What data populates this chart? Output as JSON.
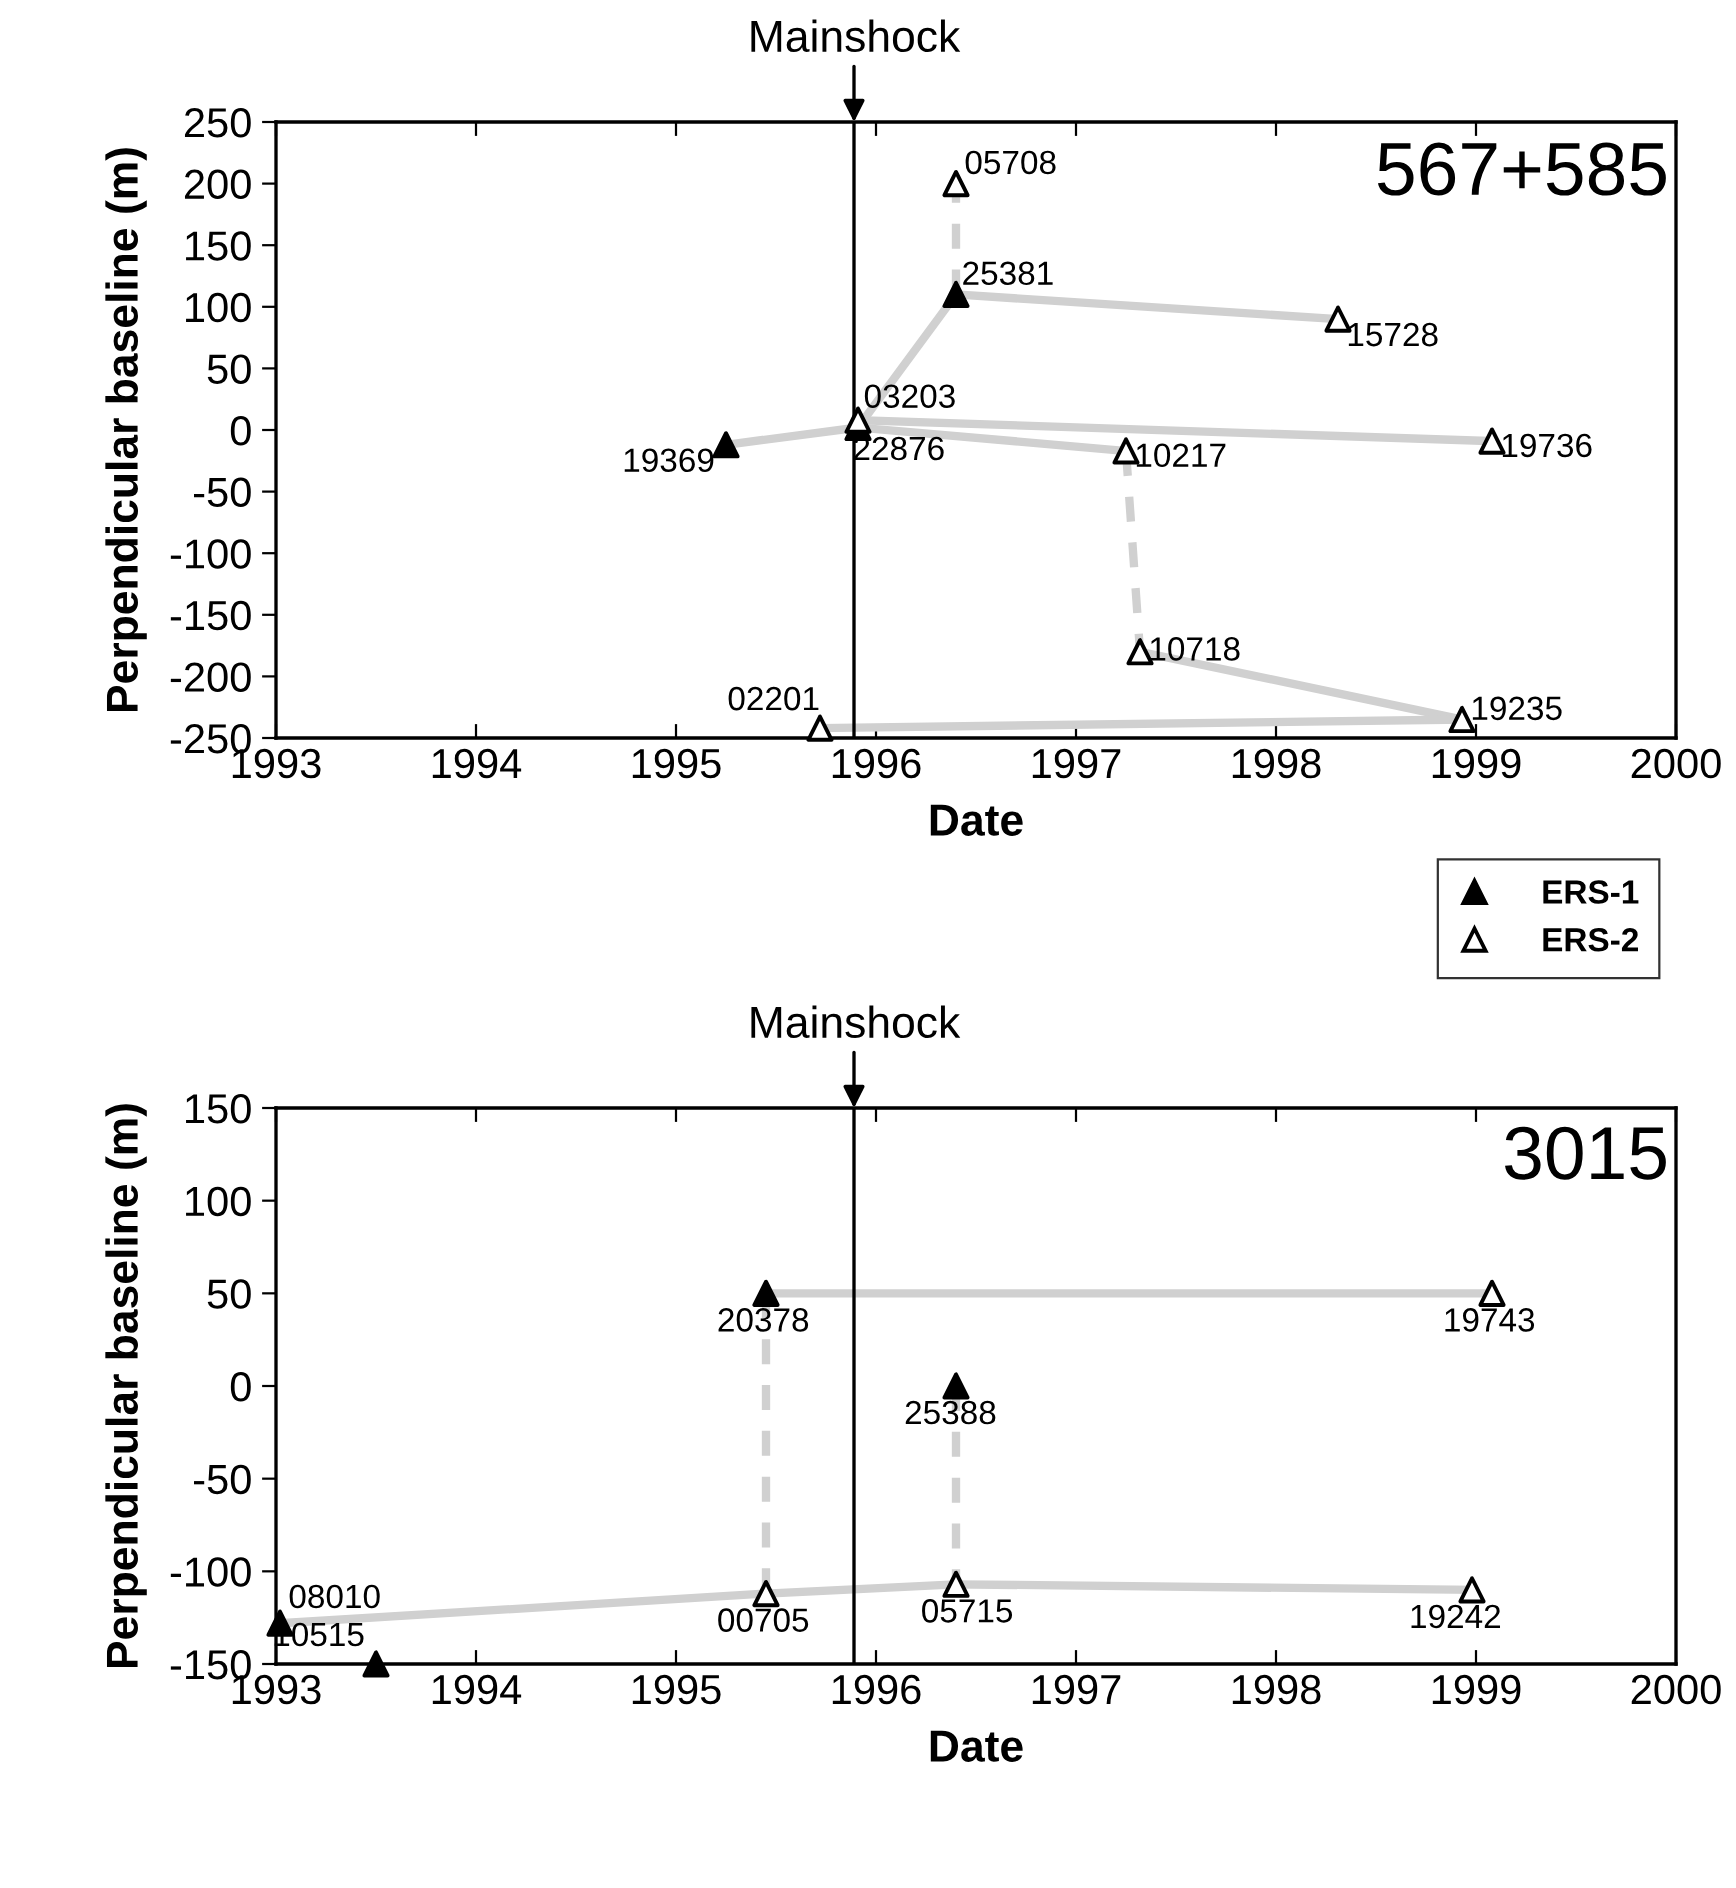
{
  "chart_data": [
    {
      "type": "scatter",
      "xlabel": "Date",
      "ylabel": "Perpendicular baseline (m)",
      "xlim": [
        1993,
        2000
      ],
      "xticks": [
        1993,
        1994,
        1995,
        1996,
        1997,
        1998,
        1999,
        2000
      ],
      "ylim": [
        -250,
        250
      ],
      "yticks": [
        -250,
        -200,
        -150,
        -100,
        -50,
        0,
        50,
        100,
        150,
        200,
        250
      ],
      "grid": false,
      "legend": "bottom right",
      "annotations": [
        "567+585",
        {
          "text": "19369",
          "x": 1995.25,
          "y": -12
        },
        {
          "text": "22876",
          "x": 1995.91,
          "y": 2
        },
        {
          "text": "25381",
          "x": 1996.4,
          "y": 110
        },
        {
          "text": "03203",
          "x": 1995.91,
          "y": 8
        },
        {
          "text": "05708",
          "x": 1996.4,
          "y": 200
        },
        {
          "text": "15728",
          "x": 1998.31,
          "y": 90
        },
        {
          "text": "10217",
          "x": 1997.25,
          "y": -17
        },
        {
          "text": "19736",
          "x": 1999.08,
          "y": -9
        },
        {
          "text": "10718",
          "x": 1997.32,
          "y": -180
        },
        {
          "text": "19235",
          "x": 1998.93,
          "y": -235
        },
        {
          "text": "02201",
          "x": 1995.72,
          "y": -242
        }
      ],
      "ref_lines": [
        {
          "axis": "x",
          "value": 1995.89,
          "label": "Mainshock",
          "color": "#000000"
        }
      ],
      "series": [
        {
          "type": "line",
          "color": "#d0d0d0",
          "line_style": "solid",
          "x": [
            1995.25,
            1995.91
          ],
          "values": [
            -12,
            2
          ]
        },
        {
          "type": "line",
          "color": "#d0d0d0",
          "line_style": "solid",
          "x": [
            1995.91,
            1996.4
          ],
          "values": [
            2,
            110
          ]
        },
        {
          "type": "line",
          "color": "#d0d0d0",
          "line_style": "solid",
          "x": [
            1996.4,
            1998.31
          ],
          "values": [
            110,
            90
          ]
        },
        {
          "type": "line",
          "color": "#d0d0d0",
          "line_style": "dashed",
          "x": [
            1996.4,
            1996.4
          ],
          "values": [
            110,
            200
          ]
        },
        {
          "type": "line",
          "color": "#d0d0d0",
          "line_style": "solid",
          "x": [
            1995.91,
            1997.25
          ],
          "values": [
            2,
            -17
          ]
        },
        {
          "type": "line",
          "color": "#d0d0d0",
          "line_style": "solid",
          "x": [
            1995.91,
            1999.08
          ],
          "values": [
            8,
            -9
          ]
        },
        {
          "type": "line",
          "color": "#d0d0d0",
          "line_style": "dashed",
          "x": [
            1997.25,
            1997.32
          ],
          "values": [
            -17,
            -180
          ]
        },
        {
          "type": "line",
          "color": "#d0d0d0",
          "line_style": "solid",
          "x": [
            1997.32,
            1998.93
          ],
          "values": [
            -180,
            -235
          ]
        },
        {
          "type": "line",
          "color": "#d0d0d0",
          "line_style": "solid",
          "x": [
            1995.72,
            1998.93
          ],
          "values": [
            -242,
            -235
          ]
        },
        {
          "name": "ERS-1",
          "color": "#000000",
          "marker": "triangle",
          "x": [
            1995.25,
            1995.91,
            1996.4
          ],
          "values": [
            -12,
            2,
            110
          ]
        },
        {
          "name": "ERS-2",
          "color": "#ffffff",
          "marker": "triangle",
          "x": [
            1995.91,
            1996.4,
            1998.31,
            1997.25,
            1999.08,
            1997.32,
            1998.93,
            1995.72
          ],
          "values": [
            8,
            200,
            90,
            -17,
            -9,
            -180,
            -235,
            -242
          ]
        }
      ]
    },
    {
      "type": "scatter",
      "xlabel": "Date",
      "ylabel": "Perpendicular baseline (m)",
      "xlim": [
        1993,
        2000
      ],
      "xticks": [
        1993,
        1994,
        1995,
        1996,
        1997,
        1998,
        1999,
        2000
      ],
      "ylim": [
        -150,
        150
      ],
      "yticks": [
        -150,
        -100,
        -50,
        0,
        50,
        100,
        150
      ],
      "grid": false,
      "annotations": [
        "3015",
        {
          "text": "08010",
          "x": 1993.02,
          "y": -128
        },
        {
          "text": "10515",
          "x": 1993.5,
          "y": -150
        },
        {
          "text": "20378",
          "x": 1995.45,
          "y": 50
        },
        {
          "text": "25388",
          "x": 1996.4,
          "y": 0
        },
        {
          "text": "00705",
          "x": 1995.45,
          "y": -112
        },
        {
          "text": "05715",
          "x": 1996.4,
          "y": -107
        },
        {
          "text": "19743",
          "x": 1999.08,
          "y": 50
        },
        {
          "text": "19242",
          "x": 1998.98,
          "y": -110
        }
      ],
      "ref_lines": [
        {
          "axis": "x",
          "value": 1995.89,
          "label": "Mainshock",
          "color": "#000000"
        }
      ],
      "series": [
        {
          "type": "line",
          "color": "#d0d0d0",
          "line_style": "solid",
          "x": [
            1993.02,
            1995.45
          ],
          "values": [
            -128,
            -112
          ]
        },
        {
          "type": "line",
          "color": "#d0d0d0",
          "line_style": "solid",
          "x": [
            1995.45,
            1996.4
          ],
          "values": [
            -112,
            -107
          ]
        },
        {
          "type": "line",
          "color": "#d0d0d0",
          "line_style": "solid",
          "x": [
            1996.4,
            1998.98
          ],
          "values": [
            -107,
            -110
          ]
        },
        {
          "type": "line",
          "color": "#d0d0d0",
          "line_style": "solid",
          "x": [
            1995.45,
            1999.08
          ],
          "values": [
            50,
            50
          ]
        },
        {
          "type": "line",
          "color": "#d0d0d0",
          "line_style": "dashed",
          "x": [
            1995.45,
            1995.45
          ],
          "values": [
            50,
            -112
          ]
        },
        {
          "type": "line",
          "color": "#d0d0d0",
          "line_style": "dashed",
          "x": [
            1996.4,
            1996.4
          ],
          "values": [
            0,
            -107
          ]
        },
        {
          "color": "#000000",
          "marker": "triangle",
          "x": [
            1993.02,
            1993.5,
            1995.45,
            1996.4
          ],
          "values": [
            -128,
            -150,
            50,
            0
          ]
        },
        {
          "color": "#ffffff",
          "marker": "triangle",
          "x": [
            1995.45,
            1996.4,
            1999.08,
            1998.98
          ],
          "values": [
            -112,
            -107,
            50,
            -110
          ]
        }
      ]
    }
  ]
}
